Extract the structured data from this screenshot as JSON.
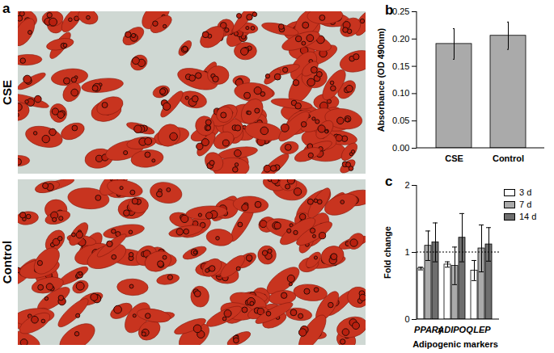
{
  "images": {
    "panel_label": "a",
    "labels": [
      "CSE",
      "Control"
    ]
  },
  "chart_data": [
    {
      "type": "bar",
      "panel_label": "b",
      "categories": [
        "CSE",
        "Control"
      ],
      "values": [
        0.191,
        0.206
      ],
      "errors": [
        0.028,
        0.025
      ],
      "color": "#aaaaaa",
      "y_label": "Absorbance (OD 490nm)",
      "ylim": [
        0,
        0.25
      ],
      "yticks": [
        {
          "value": 0,
          "label": "0.00"
        },
        {
          "value": 0.05,
          "label": "0.05"
        },
        {
          "value": 0.1,
          "label": "0.10"
        },
        {
          "value": 0.15,
          "label": "0.15"
        },
        {
          "value": 0.2,
          "label": "0.20"
        },
        {
          "value": 0.25,
          "label": "0.25"
        }
      ]
    },
    {
      "type": "bar",
      "panel_label": "c",
      "x_label": "Adipogenic markers",
      "y_label": "Fold change",
      "categories": [
        "PPARγ",
        "ADIPOQ",
        "LEP"
      ],
      "series": [
        {
          "name": "3 d",
          "color": "#ffffff",
          "values": [
            0.76,
            0.82,
            0.73
          ],
          "errors": [
            0.02,
            0.04,
            0.15
          ]
        },
        {
          "name": "7 d",
          "color": "#aaaaaa",
          "values": [
            1.1,
            0.8,
            1.06
          ],
          "errors": [
            0.22,
            0.28,
            0.35
          ]
        },
        {
          "name": "14 d",
          "color": "#6e6e6e",
          "values": [
            1.15,
            1.22,
            1.12
          ],
          "errors": [
            0.29,
            0.36,
            0.25
          ]
        }
      ],
      "reference_line": 1,
      "ylim": [
        0,
        2
      ],
      "yticks": [
        0,
        1,
        2
      ],
      "legend": "upper right"
    }
  ]
}
